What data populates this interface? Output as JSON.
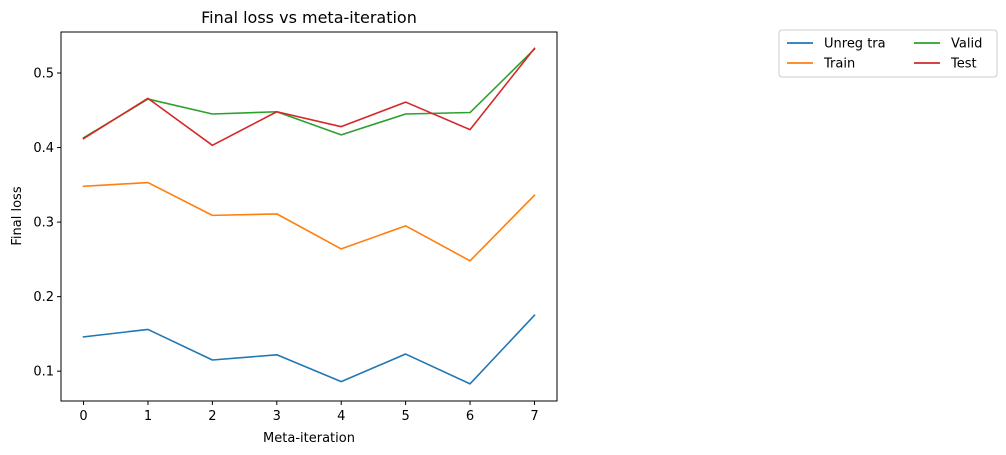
{
  "chart_data": {
    "type": "line",
    "title": "Final loss vs meta-iteration",
    "xlabel": "Meta-iteration",
    "ylabel": "Final loss",
    "x": [
      0,
      1,
      2,
      3,
      4,
      5,
      6,
      7
    ],
    "xticks": [
      "0",
      "1",
      "2",
      "3",
      "4",
      "5",
      "6",
      "7"
    ],
    "yticks": [
      "0.1",
      "0.2",
      "0.3",
      "0.4",
      "0.5"
    ],
    "xlim": [
      -0.35,
      7.35
    ],
    "ylim": [
      0.06,
      0.555
    ],
    "grid": false,
    "legend_position": "outside-right",
    "series": [
      {
        "name": "Unreg tra",
        "color": "#1f77b4",
        "values": [
          0.146,
          0.156,
          0.115,
          0.122,
          0.086,
          0.123,
          0.083,
          0.175
        ]
      },
      {
        "name": "Train",
        "color": "#ff7f0e",
        "values": [
          0.348,
          0.353,
          0.309,
          0.311,
          0.264,
          0.295,
          0.248,
          0.336
        ]
      },
      {
        "name": "Valid",
        "color": "#2ca02c",
        "values": [
          0.413,
          0.465,
          0.445,
          0.448,
          0.417,
          0.445,
          0.447,
          0.532
        ]
      },
      {
        "name": "Test",
        "color": "#d62728",
        "values": [
          0.412,
          0.466,
          0.403,
          0.448,
          0.428,
          0.461,
          0.424,
          0.533
        ]
      }
    ]
  }
}
